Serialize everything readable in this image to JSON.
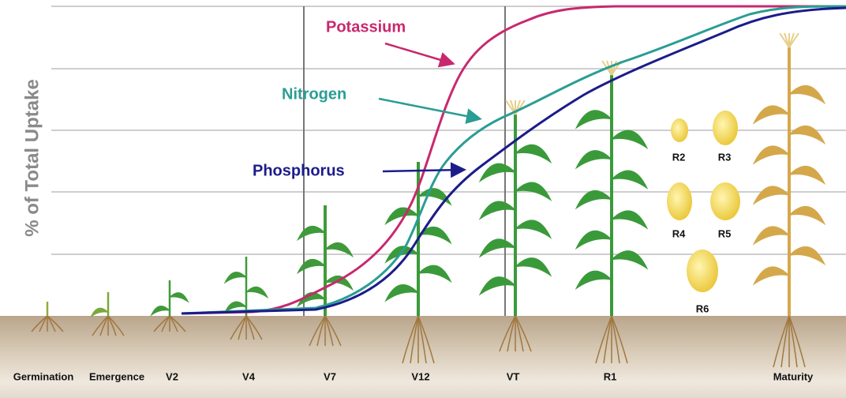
{
  "y_axis_label": "% of Total Uptake",
  "curves": [
    {
      "label": "Potassium",
      "color": "#c8286e"
    },
    {
      "label": "Nitrogen",
      "color": "#2a9d94"
    },
    {
      "label": "Phosphorus",
      "color": "#1c1c8a"
    }
  ],
  "stages": [
    "Germination",
    "Emergence",
    "V2",
    "V4",
    "V7",
    "V12",
    "VT",
    "R1",
    "Maturity"
  ],
  "kernel_stages": [
    "R2",
    "R3",
    "R4",
    "R5",
    "R6"
  ]
}
